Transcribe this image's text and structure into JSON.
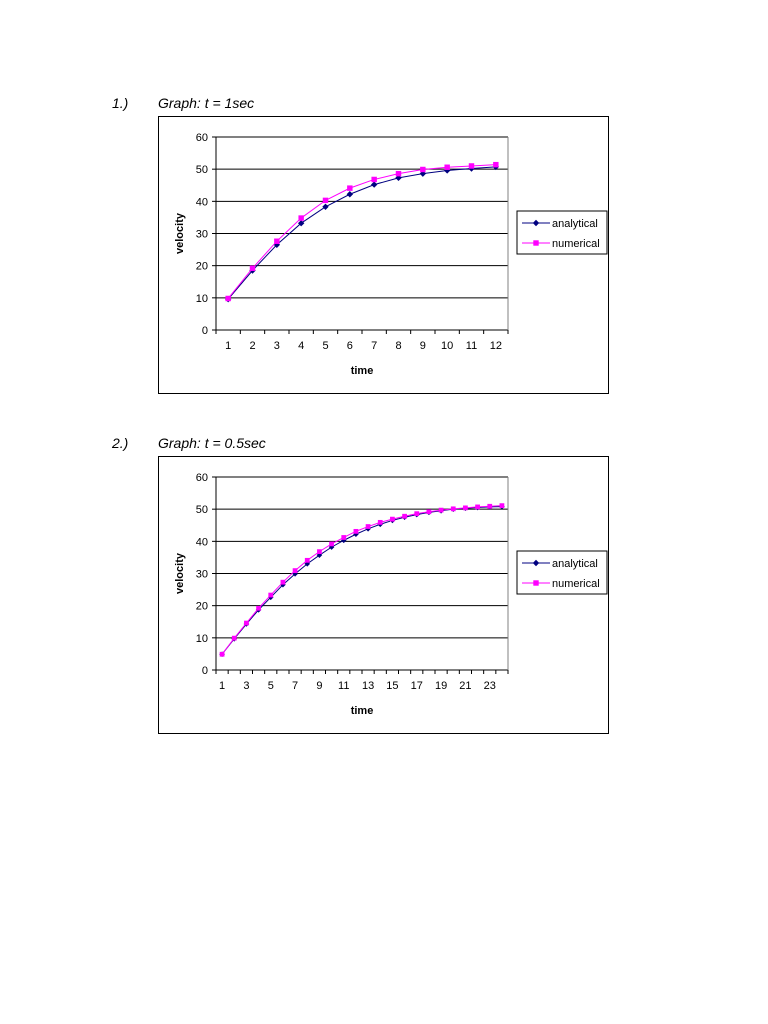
{
  "chart_data": [
    {
      "type": "line",
      "number": "1.)",
      "title": "Graph: t = 1sec",
      "xlabel": "time",
      "ylabel": "velocity",
      "ylim": [
        0,
        60
      ],
      "yticks": [
        0,
        10,
        20,
        30,
        40,
        50,
        60
      ],
      "categories": [
        "1",
        "2",
        "3",
        "4",
        "5",
        "6",
        "7",
        "8",
        "9",
        "10",
        "11",
        "12"
      ],
      "grid": "horizontal",
      "legend": "right",
      "series": [
        {
          "name": "analytical",
          "color": "#000080",
          "marker": "diamond",
          "values": [
            9.6,
            18.5,
            26.5,
            33.2,
            38.3,
            42.2,
            45.2,
            47.3,
            48.6,
            49.6,
            50.2,
            50.7
          ]
        },
        {
          "name": "numerical",
          "color": "#ff00ff",
          "marker": "square",
          "values": [
            9.8,
            19.2,
            27.6,
            34.8,
            40.3,
            44.1,
            46.8,
            48.6,
            49.9,
            50.6,
            51.0,
            51.4
          ]
        }
      ]
    },
    {
      "type": "line",
      "number": "2.)",
      "title": "Graph: t = 0.5sec",
      "xlabel": "time",
      "ylabel": "velocity",
      "ylim": [
        0,
        60
      ],
      "yticks": [
        0,
        10,
        20,
        30,
        40,
        50,
        60
      ],
      "categories": [
        "1",
        "2",
        "3",
        "4",
        "5",
        "6",
        "7",
        "8",
        "9",
        "10",
        "11",
        "12",
        "13",
        "14",
        "15",
        "16",
        "17",
        "18",
        "19",
        "20",
        "21",
        "22",
        "23",
        "24"
      ],
      "tick_labels": [
        "1",
        "3",
        "5",
        "7",
        "9",
        "11",
        "13",
        "15",
        "17",
        "19",
        "21",
        "23"
      ],
      "grid": "horizontal",
      "legend": "right",
      "series": [
        {
          "name": "analytical",
          "color": "#000080",
          "marker": "diamond",
          "values": [
            4.9,
            9.7,
            14.3,
            18.7,
            22.6,
            26.5,
            29.9,
            33.0,
            35.7,
            38.2,
            40.3,
            42.2,
            43.9,
            45.3,
            46.5,
            47.5,
            48.3,
            49.0,
            49.5,
            50.0,
            50.3,
            50.5,
            50.7,
            50.8
          ]
        },
        {
          "name": "numerical",
          "color": "#ff00ff",
          "marker": "square",
          "values": [
            4.9,
            9.9,
            14.6,
            19.2,
            23.3,
            27.3,
            30.9,
            34.1,
            36.8,
            39.2,
            41.2,
            43.1,
            44.6,
            45.9,
            46.9,
            47.8,
            48.6,
            49.2,
            49.7,
            50.1,
            50.4,
            50.7,
            50.9,
            51.1
          ]
        }
      ]
    }
  ]
}
